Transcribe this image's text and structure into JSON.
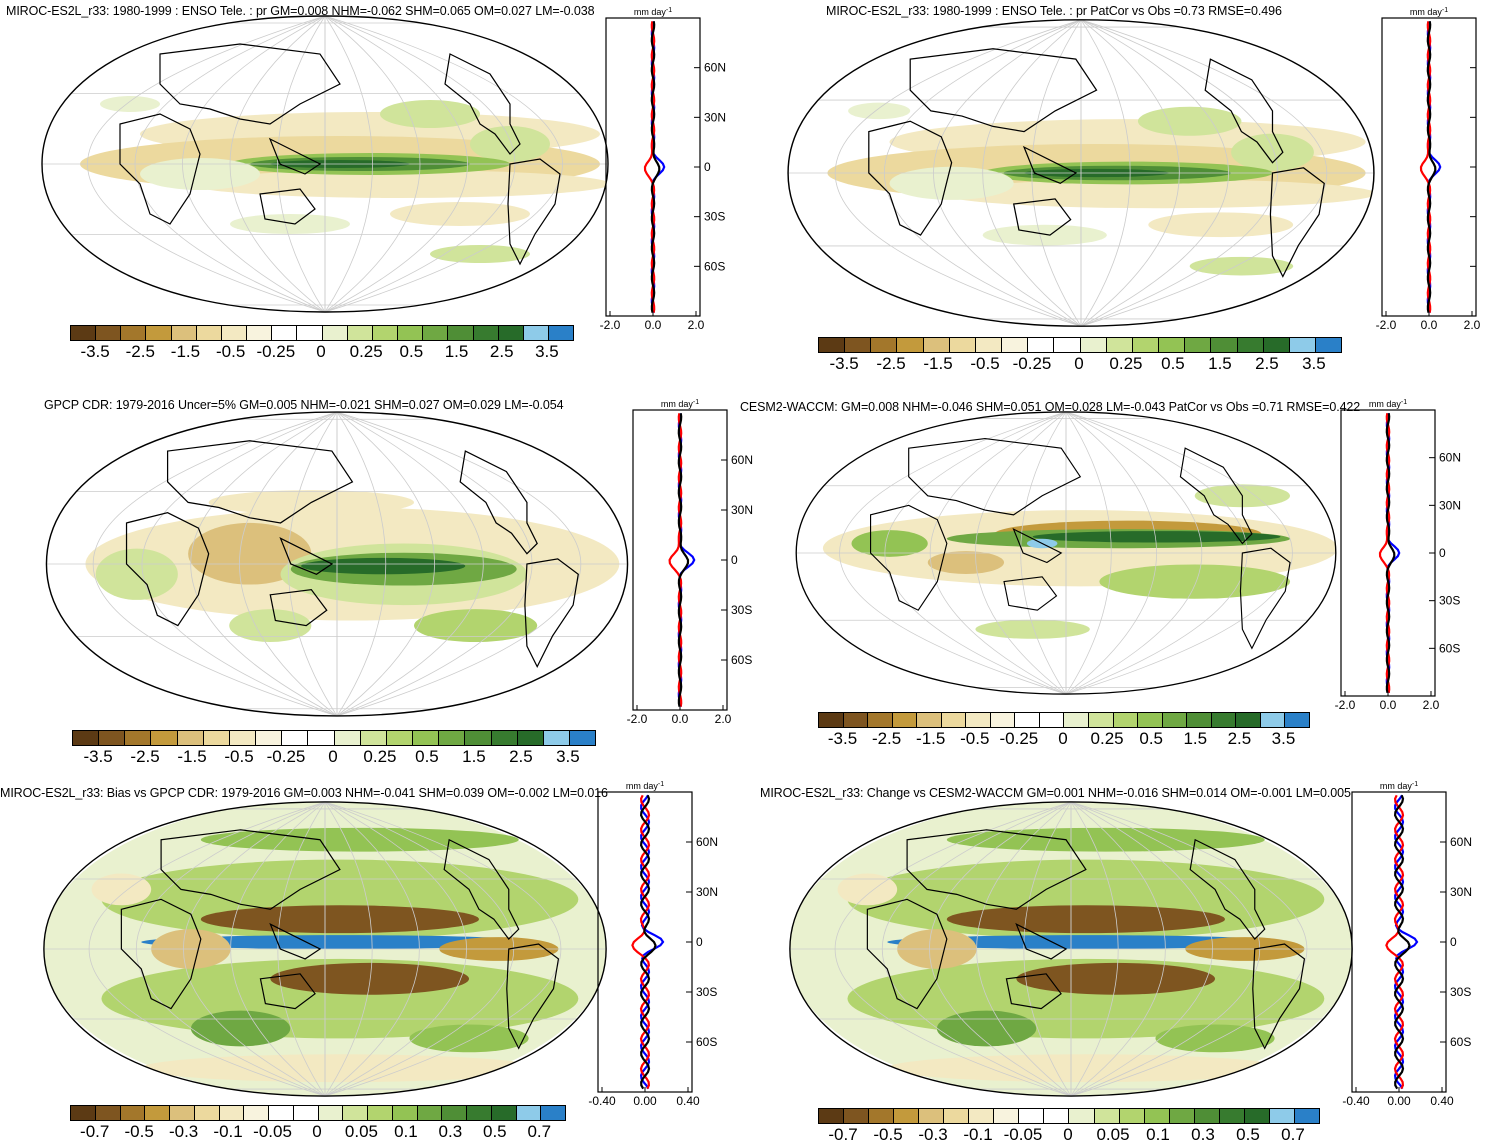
{
  "panels": [
    {
      "id": "p1",
      "title": "MIROC-ES2L_r33: 1980-1999 : ENSO Tele. : pr GM=0.008 NHM=-0.062 SHM=0.065 OM=0.027 LM=-0.038",
      "zonal_unit": "mm day",
      "zonal_unit_exp": "-1",
      "lat_labels": [
        "60N",
        "30N",
        "0",
        "30S",
        "60S"
      ],
      "x_ticks": [
        "-2.0",
        "0.0",
        "2.0"
      ],
      "colorbar_labels": [
        "-3.5",
        "-2.5",
        "-1.5",
        "-0.5",
        "-0.25",
        "0",
        "0.25",
        "0.5",
        "1.5",
        "2.5",
        "3.5"
      ]
    },
    {
      "id": "p2",
      "title": "MIROC-ES2L_r33: 1980-1999 : ENSO Tele. : pr PatCor vs Obs =0.73 RMSE=0.496",
      "zonal_unit": "mm day",
      "zonal_unit_exp": "-1",
      "lat_labels": [],
      "x_ticks": [
        "-2.0",
        "0.0",
        "2.0"
      ],
      "colorbar_labels": [
        "-3.5",
        "-2.5",
        "-1.5",
        "-0.5",
        "-0.25",
        "0",
        "0.25",
        "0.5",
        "1.5",
        "2.5",
        "3.5"
      ]
    },
    {
      "id": "p3",
      "title": "GPCP CDR: 1979-2016 Uncer=5% GM=0.005 NHM=-0.021 SHM=0.027 OM=0.029 LM=-0.054",
      "zonal_unit": "mm day",
      "zonal_unit_exp": "-1",
      "lat_labels": [
        "60N",
        "30N",
        "0",
        "30S",
        "60S"
      ],
      "x_ticks": [
        "-2.0",
        "0.0",
        "2.0"
      ],
      "colorbar_labels": [
        "-3.5",
        "-2.5",
        "-1.5",
        "-0.5",
        "-0.25",
        "0",
        "0.25",
        "0.5",
        "1.5",
        "2.5",
        "3.5"
      ]
    },
    {
      "id": "p4",
      "title": "CESM2-WACCM: GM=0.008 NHM=-0.046 SHM=0.051 OM=0.028 LM=-0.043 PatCor vs Obs =0.71 RMSE=0.422",
      "zonal_unit": "mm day",
      "zonal_unit_exp": "-1",
      "lat_labels": [
        "60N",
        "30N",
        "0",
        "30S",
        "60S"
      ],
      "x_ticks": [
        "-2.0",
        "0.0",
        "2.0"
      ],
      "colorbar_labels": [
        "-3.5",
        "-2.5",
        "-1.5",
        "-0.5",
        "-0.25",
        "0",
        "0.25",
        "0.5",
        "1.5",
        "2.5",
        "3.5"
      ]
    },
    {
      "id": "p5",
      "title": "MIROC-ES2L_r33: Bias vs GPCP CDR: 1979-2016 GM=0.003 NHM=-0.041 SHM=0.039 OM=-0.002 LM=0.016",
      "zonal_unit": "mm day",
      "zonal_unit_exp": "-1",
      "lat_labels": [
        "60N",
        "30N",
        "0",
        "30S",
        "60S"
      ],
      "x_ticks": [
        "-0.40",
        "0.00",
        "0.40"
      ],
      "colorbar_labels": [
        "-0.7",
        "-0.5",
        "-0.3",
        "-0.1",
        "-0.05",
        "0",
        "0.05",
        "0.1",
        "0.3",
        "0.5",
        "0.7"
      ]
    },
    {
      "id": "p6",
      "title": "MIROC-ES2L_r33: Change vs CESM2-WACCM GM=0.001 NHM=-0.016 SHM=0.014 OM=-0.001 LM=0.005",
      "zonal_unit": "mm day",
      "zonal_unit_exp": "-1",
      "lat_labels": [
        "60N",
        "30N",
        "0",
        "30S",
        "60S"
      ],
      "x_ticks": [
        "-0.40",
        "0.00",
        "0.40"
      ],
      "colorbar_labels": [
        "-0.7",
        "-0.5",
        "-0.3",
        "-0.1",
        "-0.05",
        "0",
        "0.05",
        "0.1",
        "0.3",
        "0.5",
        "0.7"
      ]
    }
  ],
  "colorbar_colors": [
    "#5c3a14",
    "#7e5520",
    "#a3772b",
    "#c39a3c",
    "#dcc07c",
    "#ecd99e",
    "#f3e9c2",
    "#f8f3de",
    "#ffffff",
    "#ffffff",
    "#e9f1cf",
    "#d0e49b",
    "#b2d46e",
    "#93c354",
    "#6fa843",
    "#4f8e36",
    "#377b2f",
    "#276b29",
    "#8ecbe9",
    "#2a80c8"
  ],
  "series_colors": {
    "model": "#ff0000",
    "obs": "#0000ff",
    "mean": "#000000"
  }
}
